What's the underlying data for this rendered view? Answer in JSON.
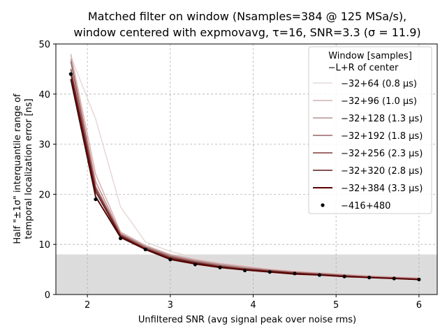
{
  "chart_data": {
    "type": "line",
    "title_line1": "Matched filter on window (Nsamples=384 @ 125 MSa/s),",
    "title_line2": "window centered with expmovavg, τ=16, SNR=3.3 (σ = 11.9)",
    "xlabel": "Unfiltered SNR (avg signal peak over noise rms)",
    "ylabel_line1": "Half \"±1σ\" interquantile range of",
    "ylabel_line2": "temporal localization error [ns]",
    "xlim": [
      1.62,
      6.22
    ],
    "ylim": [
      0,
      50
    ],
    "x_ticks": [
      2,
      3,
      4,
      5,
      6
    ],
    "y_ticks": [
      0,
      10,
      20,
      30,
      40,
      50
    ],
    "grid": true,
    "shaded_band": {
      "y_from": 0,
      "y_to": 8,
      "color": "#dcdcdc"
    },
    "legend": {
      "placement": "top-right",
      "title_line1": "Window [samples]",
      "title_line2": "−L+R of center"
    },
    "x": [
      1.8,
      2.1,
      2.4,
      2.7,
      3.0,
      3.3,
      3.6,
      3.9,
      4.2,
      4.5,
      4.8,
      5.1,
      5.4,
      5.7,
      6.0
    ],
    "series": [
      {
        "name": "−32+64 (0.8 μs)",
        "color": "#e6d8d8",
        "width": 1.5,
        "values": [
          47.5,
          35.0,
          17.5,
          10.5,
          8.6,
          7.4,
          6.5,
          5.8,
          5.2,
          4.8,
          4.4,
          4.1,
          3.8,
          3.6,
          3.4
        ]
      },
      {
        "name": "−32+96 (1.0 μs)",
        "color": "#d2b3b3",
        "width": 1.5,
        "values": [
          48.0,
          24.0,
          12.5,
          9.8,
          8.0,
          7.0,
          6.2,
          5.6,
          5.0,
          4.6,
          4.3,
          4.0,
          3.7,
          3.5,
          3.3
        ]
      },
      {
        "name": "−32+128 (1.3 μs)",
        "color": "#b98f8f",
        "width": 1.5,
        "values": [
          47.0,
          22.5,
          12.2,
          9.6,
          7.8,
          6.8,
          6.0,
          5.4,
          4.9,
          4.5,
          4.2,
          3.9,
          3.6,
          3.4,
          3.2
        ]
      },
      {
        "name": "−32+192 (1.8 μs)",
        "color": "#9a6464",
        "width": 1.5,
        "values": [
          46.5,
          21.5,
          12.0,
          9.4,
          7.6,
          6.6,
          5.8,
          5.2,
          4.8,
          4.4,
          4.1,
          3.8,
          3.5,
          3.3,
          3.1
        ]
      },
      {
        "name": "−32+256 (2.3 μs)",
        "color": "#7e3a3a",
        "width": 1.5,
        "values": [
          45.0,
          21.0,
          11.8,
          9.2,
          7.4,
          6.4,
          5.6,
          5.1,
          4.7,
          4.3,
          4.0,
          3.7,
          3.4,
          3.2,
          3.0
        ]
      },
      {
        "name": "−32+320 (2.8 μs)",
        "color": "#5e1818",
        "width": 1.5,
        "values": [
          44.0,
          20.5,
          11.6,
          9.1,
          7.2,
          6.3,
          5.5,
          5.0,
          4.6,
          4.2,
          3.9,
          3.6,
          3.4,
          3.2,
          3.0
        ]
      },
      {
        "name": "−32+384 (3.3 μs)",
        "color": "#5a0000",
        "width": 2,
        "values": [
          43.0,
          19.5,
          11.4,
          9.0,
          7.0,
          6.1,
          5.4,
          4.9,
          4.5,
          4.1,
          3.9,
          3.6,
          3.4,
          3.2,
          3.0
        ]
      }
    ],
    "markers": {
      "name": "−416+480",
      "color": "#000000",
      "values": [
        44.0,
        19.0,
        11.2,
        9.0,
        7.0,
        6.0,
        5.4,
        4.8,
        4.5,
        4.2,
        3.9,
        3.6,
        3.4,
        3.2,
        3.0
      ]
    }
  }
}
